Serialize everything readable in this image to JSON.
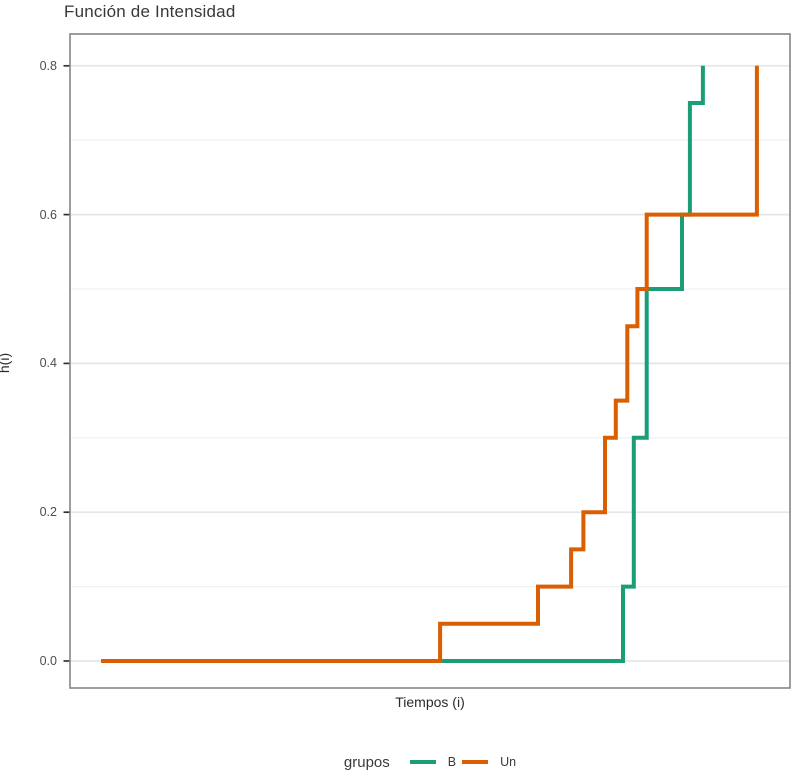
{
  "title": "Función de Intensidad",
  "axes": {
    "x_label": "Tiempos (i)",
    "y_label": "h(i)",
    "y_ticks": [
      {
        "label": "0.0",
        "value": 0.0
      },
      {
        "label": "0.2",
        "value": 0.2
      },
      {
        "label": "0.4",
        "value": 0.4
      },
      {
        "label": "0.6",
        "value": 0.6
      },
      {
        "label": "0.8",
        "value": 0.8
      }
    ],
    "y_minor": [
      0.1,
      0.3,
      0.5,
      0.7
    ]
  },
  "legend": {
    "title": "grupos",
    "items": [
      {
        "label": "B",
        "color": "#1B9E77"
      },
      {
        "label": "Un",
        "color": "#D95F02"
      }
    ]
  },
  "chart_data": {
    "type": "line",
    "subtype": "step",
    "title": "Función de Intensidad",
    "xlabel": "Tiempos (i)",
    "ylabel": "h(i)",
    "ylim": [
      0.0,
      0.8
    ],
    "x_tick_labels_shown": false,
    "grid": "horizontal, major 0.2 + minor 0.1",
    "legend_position": "bottom",
    "series": [
      {
        "name": "B",
        "color": "#1B9E77",
        "note": "x is fraction of panel width (no numeric x ticks shown); each pair = [x, new h(i) value reached at x]",
        "steps": [
          [
            0.043,
            0.0
          ],
          [
            0.768,
            0.1
          ],
          [
            0.783,
            0.3
          ],
          [
            0.801,
            0.5
          ],
          [
            0.85,
            0.6
          ],
          [
            0.861,
            0.75
          ],
          [
            0.879,
            0.8
          ]
        ]
      },
      {
        "name": "Un",
        "color": "#D95F02",
        "note": "x is fraction of panel width (no numeric x ticks shown); each pair = [x, new h(i) value reached at x]",
        "steps": [
          [
            0.043,
            0.0
          ],
          [
            0.514,
            0.05
          ],
          [
            0.65,
            0.1
          ],
          [
            0.696,
            0.15
          ],
          [
            0.713,
            0.2
          ],
          [
            0.743,
            0.3
          ],
          [
            0.758,
            0.35
          ],
          [
            0.774,
            0.45
          ],
          [
            0.788,
            0.5
          ],
          [
            0.801,
            0.6
          ],
          [
            0.954,
            0.8
          ]
        ]
      }
    ]
  },
  "style_colors": {
    "grid_major": "#e6e6e6",
    "grid_minor": "#f2f2f2",
    "panel_border": "#858585",
    "tick_mark": "#333333"
  }
}
